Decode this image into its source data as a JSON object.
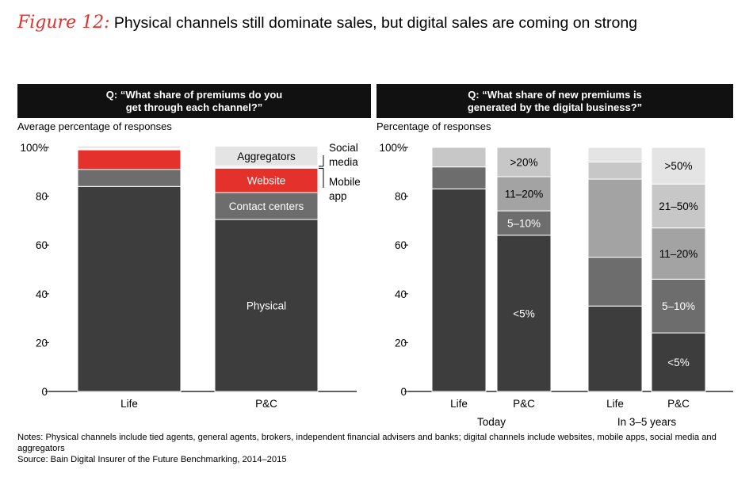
{
  "title": {
    "figure_label": "Figure 12:",
    "text": "Physical channels still dominate sales, but digital sales are coming on strong"
  },
  "colors": {
    "accent": "#e4312b",
    "black": "#111111"
  },
  "chart_data": [
    {
      "type": "bar",
      "stacked": true,
      "question": "Q: “What share of premiums do you get through each channel?”",
      "ylabel": "Average percentage of responses",
      "ylim": [
        0,
        100
      ],
      "yticks": [
        "0",
        "20",
        "40",
        "60",
        "80",
        "100%"
      ],
      "categories": [
        "Life",
        "P&C"
      ],
      "series": [
        {
          "name": "Physical",
          "color": "#3d3d3d",
          "values": [
            84,
            70.5
          ]
        },
        {
          "name": "Contact centers",
          "color": "#6d6d6d",
          "values": [
            7,
            11
          ]
        },
        {
          "name": "Website",
          "color": "#e4312b",
          "values": [
            8,
            10
          ]
        },
        {
          "name": "Mobile app",
          "color": "#ffffff",
          "values": [
            0.3,
            0.5
          ]
        },
        {
          "name": "Social media",
          "color": "#cfcfcf",
          "values": [
            0.3,
            0.5
          ]
        },
        {
          "name": "Aggregators",
          "color": "#e4e4e4",
          "values": [
            1,
            8
          ]
        }
      ],
      "side_labels": [
        "Social media",
        "Mobile app"
      ]
    },
    {
      "type": "bar",
      "stacked": true,
      "question": "Q: “What share of new premiums is generated by the digital business?”",
      "ylabel": "Percentage of responses",
      "ylim": [
        0,
        100
      ],
      "yticks": [
        "0",
        "20",
        "40",
        "60",
        "80",
        "100%"
      ],
      "categories": [
        "Life",
        "P&C",
        "Life",
        "P&C"
      ],
      "groups": [
        "Today",
        "In 3–5 years"
      ],
      "series": [
        {
          "name": "<5%",
          "color": "#3d3d3d",
          "values": [
            83,
            64,
            35,
            24
          ]
        },
        {
          "name": "5–10%",
          "color": "#6d6d6d",
          "values": [
            9,
            10,
            20,
            22
          ]
        },
        {
          "name": "11–20%",
          "color": "#a3a3a3",
          "values": [
            0,
            14,
            32,
            21
          ]
        },
        {
          "name": "21–50%",
          "color": "#c7c7c7",
          "values": [
            0,
            0,
            7,
            18
          ]
        },
        {
          "name": ">20%",
          "color": "#c7c7c7",
          "values": [
            8,
            12,
            0,
            0
          ]
        },
        {
          "name": ">50%",
          "color": "#e4e4e4",
          "values": [
            0,
            0,
            6,
            15
          ]
        }
      ]
    }
  ],
  "notes": "Notes: Physical channels include tied agents, general agents, brokers, independent financial advisers and banks; digital channels include websites, mobile apps, social media and aggregators",
  "source": "Source: Bain Digital Insurer of the Future Benchmarking, 2014–2015"
}
